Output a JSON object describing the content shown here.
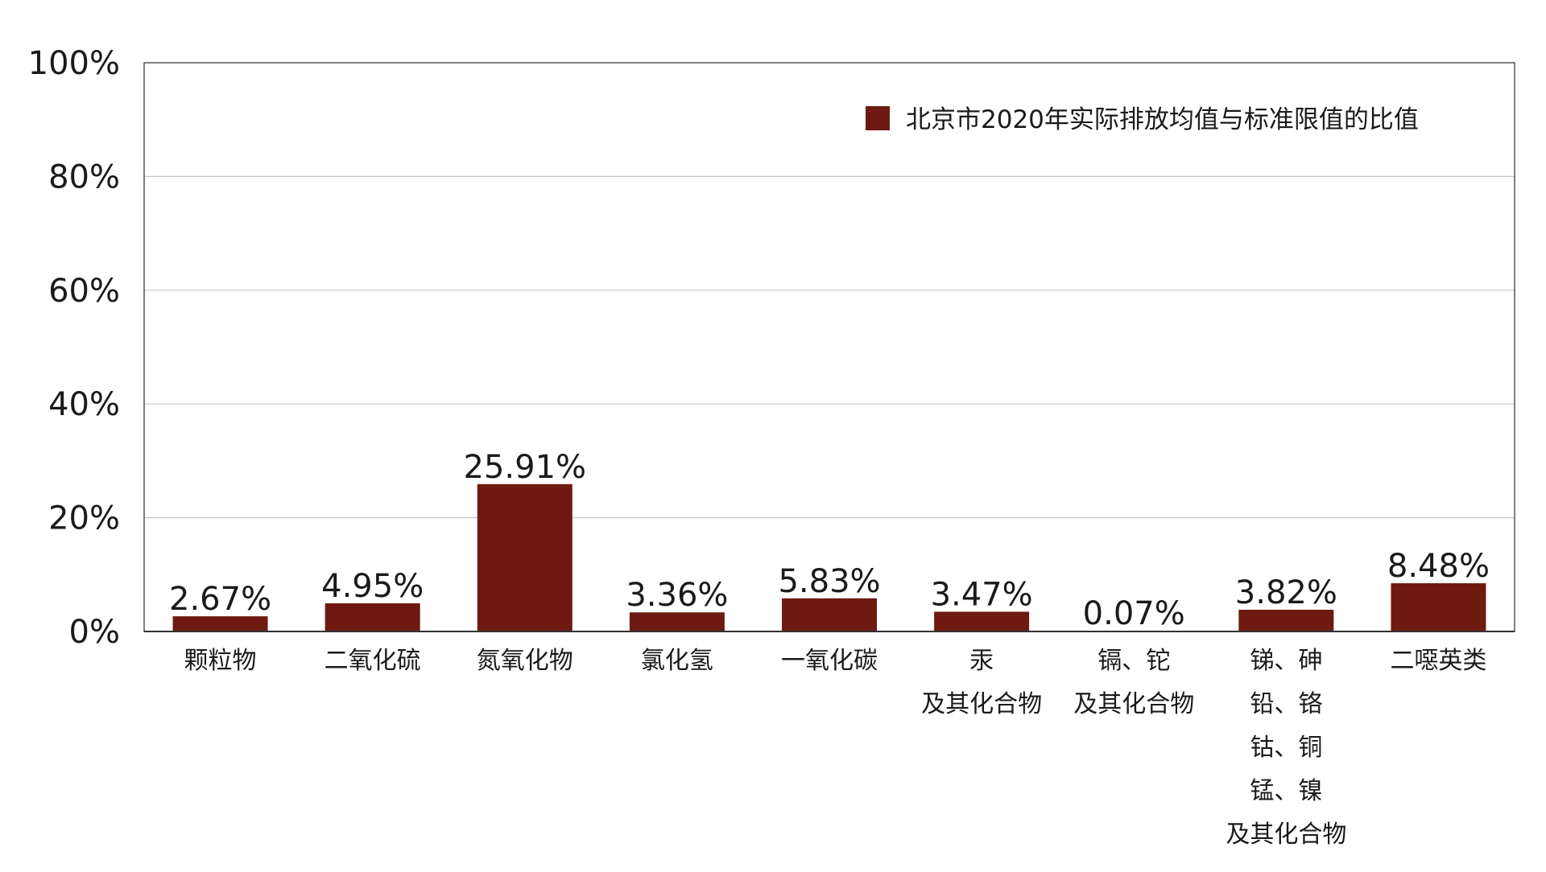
{
  "chart_data": {
    "type": "bar",
    "title": "",
    "xlabel": "",
    "ylabel": "",
    "ylim": [
      0,
      100
    ],
    "y_ticks": [
      "0%",
      "20%",
      "40%",
      "60%",
      "80%",
      "100%"
    ],
    "y_tick_values": [
      0,
      20,
      40,
      60,
      80,
      100
    ],
    "grid": true,
    "legend_position": "top-right",
    "categories": [
      [
        "颗粒物"
      ],
      [
        "二氧化硫"
      ],
      [
        "氮氧化物"
      ],
      [
        "氯化氢"
      ],
      [
        "一氧化碳"
      ],
      [
        "汞",
        "及其化合物"
      ],
      [
        "镉、铊",
        "及其化合物"
      ],
      [
        "锑、砷",
        "铅、铬",
        "钴、铜",
        "锰、镍",
        "及其化合物"
      ],
      [
        "二噁英类"
      ]
    ],
    "series": [
      {
        "name": "北京市2020年实际排放均值与标准限值的比值",
        "color": "#6e1a10",
        "values": [
          2.67,
          4.95,
          25.91,
          3.36,
          5.83,
          3.47,
          0.07,
          3.82,
          8.48
        ],
        "labels": [
          "2.67%",
          "4.95%",
          "25.91%",
          "3.36%",
          "5.83%",
          "3.47%",
          "0.07%",
          "3.82%",
          "8.48%"
        ]
      }
    ]
  }
}
